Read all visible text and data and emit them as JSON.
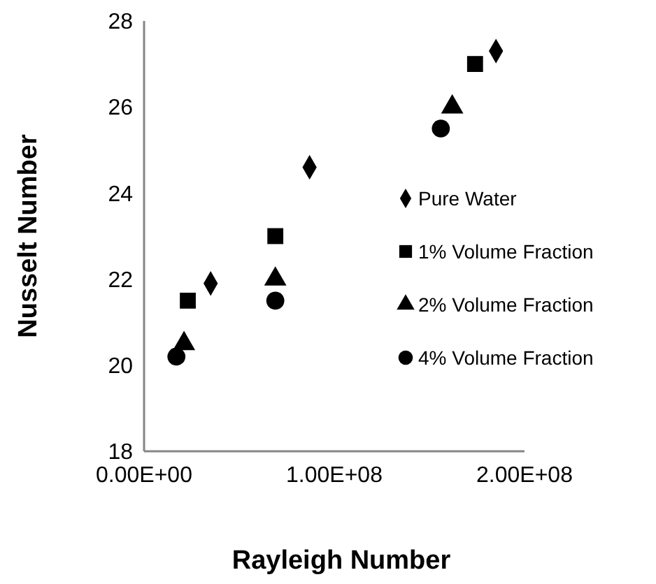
{
  "chart_data": {
    "type": "scatter",
    "xlabel": "Rayleigh Number",
    "ylabel": "Nusselt Number",
    "xlim": [
      0,
      200000000
    ],
    "xticks": [
      {
        "value": 0,
        "label": "0.00E+00"
      },
      {
        "value": 100000000,
        "label": "1.00E+08"
      },
      {
        "value": 200000000,
        "label": "2.00E+08"
      }
    ],
    "ylim": [
      18,
      28
    ],
    "yticks": [
      18,
      20,
      22,
      24,
      26,
      28
    ],
    "grid": false,
    "legend": "right",
    "series": [
      {
        "name": "Pure Water",
        "color": "#000000",
        "marker": "diamond",
        "x": [
          35000000,
          87000000,
          185000000
        ],
        "values": [
          21.9,
          24.6,
          27.3
        ]
      },
      {
        "name": "1% Volume Fraction",
        "color": "#000000",
        "marker": "square",
        "x": [
          23000000,
          69000000,
          174000000
        ],
        "values": [
          21.5,
          23,
          27
        ]
      },
      {
        "name": "2% Volume Fraction",
        "color": "#000000",
        "marker": "triangle",
        "x": [
          21000000,
          69000000,
          162000000
        ],
        "values": [
          20.5,
          22,
          26
        ]
      },
      {
        "name": "4% Volume Fraction",
        "color": "#000000",
        "marker": "circle",
        "x": [
          17000000,
          69000000,
          156000000
        ],
        "values": [
          20.2,
          21.5,
          25.5
        ]
      }
    ]
  }
}
